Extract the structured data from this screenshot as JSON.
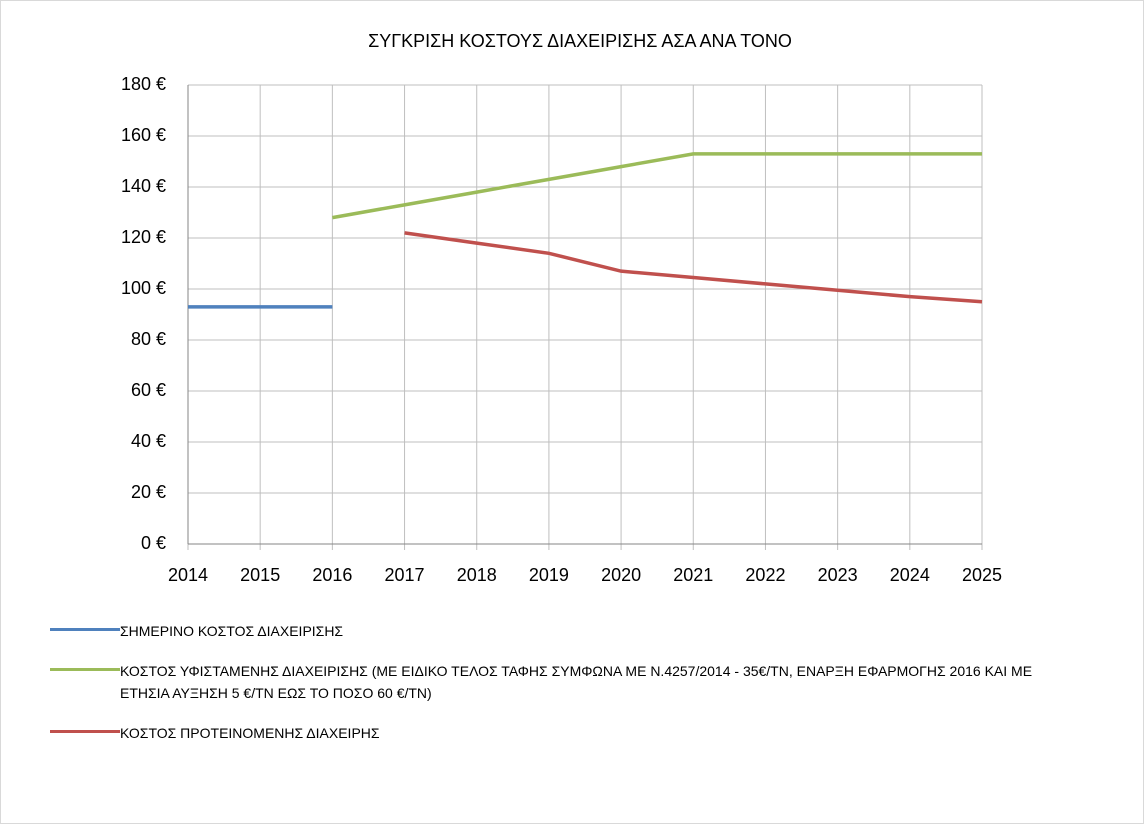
{
  "chart_data": {
    "type": "line",
    "title": "ΣΥΓΚΡΙΣΗ ΚΟΣΤΟΥΣ ΔΙΑΧΕΙΡΙΣΗΣ ΑΣΑ ΑΝΑ ΤΟΝΟ",
    "x": [
      2014,
      2015,
      2016,
      2017,
      2018,
      2019,
      2020,
      2021,
      2022,
      2023,
      2024,
      2025
    ],
    "series": [
      {
        "name": "ΣΗΜΕΡΙΝΟ ΚΟΣΤΟΣ ΔΙΑΧΕΙΡΙΣΗΣ",
        "color": "#4f81bd",
        "values": [
          93,
          93,
          93,
          null,
          null,
          null,
          null,
          null,
          null,
          null,
          null,
          null
        ]
      },
      {
        "name": "ΚΟΣΤΟΣ ΥΦΙΣΤΑΜΕΝΗΣ ΔΙΑΧΕΙΡΙΣΗΣ (ΜΕ ΕΙΔΙΚΟ ΤΕΛΟΣ ΤΑΦΗΣ ΣΥΜΦΩΝΑ ΜΕ Ν.4257/2014 -  35€/ΤΝ, ΕΝΑΡΞΗ ΕΦΑΡΜΟΓΗΣ 2016 ΚΑΙ ΜΕ ΕΤΗΣΙΑ ΑΥΞΗΣΗ 5 €/ΤΝ ΕΩΣ ΤΟ ΠΟΣΟ 60 €/ΤΝ)",
        "color": "#9bbb59",
        "values": [
          null,
          null,
          128,
          133,
          138,
          143,
          148,
          153,
          153,
          153,
          153,
          153
        ]
      },
      {
        "name": "ΚΟΣΤΟΣ ΠΡΟΤΕΙΝΟΜΕΝΗΣ ΔΙΑΧΕΙΡΗΣ",
        "color": "#c0504d",
        "values": [
          null,
          null,
          null,
          122,
          118,
          114,
          107,
          104.5,
          102,
          99.5,
          97,
          95
        ]
      }
    ],
    "xlim": [
      2014,
      2025
    ],
    "xticks": [
      2014,
      2015,
      2016,
      2017,
      2018,
      2019,
      2020,
      2021,
      2022,
      2023,
      2024,
      2025
    ],
    "ylim": [
      0,
      180
    ],
    "yticks": [
      {
        "value": 0,
        "label": "0 €"
      },
      {
        "value": 20,
        "label": "20 €"
      },
      {
        "value": 40,
        "label": "40 €"
      },
      {
        "value": 60,
        "label": "60 €"
      },
      {
        "value": 80,
        "label": "80 €"
      },
      {
        "value": 100,
        "label": "100 €"
      },
      {
        "value": 120,
        "label": "120 €"
      },
      {
        "value": 140,
        "label": "140 €"
      },
      {
        "value": 160,
        "label": "160 €"
      },
      {
        "value": 180,
        "label": "180 €"
      }
    ],
    "grid": true,
    "legend": "bottom"
  }
}
